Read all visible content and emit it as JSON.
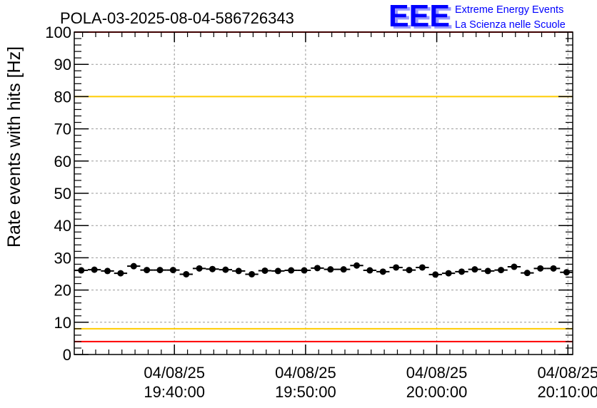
{
  "chart_data": {
    "type": "scatter",
    "title": "POLA-03-2025-08-04-586726343",
    "ylabel": "Rate events with hits [Hz]",
    "xlabel": "",
    "ylim": [
      0,
      100
    ],
    "xlim": [
      "19:32:22",
      "20:10:22"
    ],
    "grid": true,
    "yticks": [
      "0",
      "10",
      "20",
      "30",
      "40",
      "50",
      "60",
      "70",
      "80",
      "90",
      "100"
    ],
    "xticks": [
      {
        "time": "19:40:00",
        "date": "04/08/25",
        "label": "19:40:00"
      },
      {
        "time": "19:50:00",
        "date": "04/08/25",
        "label": "19:50:00"
      },
      {
        "time": "20:00:00",
        "date": "04/08/25",
        "label": "20:00:00"
      },
      {
        "time": "20:10:00",
        "date": "04/08/25",
        "label": "20:10:00"
      }
    ],
    "thresholds": [
      {
        "value": 100,
        "color": "#ff0000"
      },
      {
        "value": 80,
        "color": "#ffcc00"
      },
      {
        "value": 8,
        "color": "#ffcc00"
      },
      {
        "value": 4,
        "color": "#ff0000"
      }
    ],
    "series": [
      {
        "name": "rate",
        "color": "#000000",
        "x_start": "19:32:54",
        "x_step_seconds": 60,
        "bin_width_seconds": 60,
        "values": [
          26.1,
          26.3,
          25.9,
          25.2,
          27.4,
          26.2,
          26.2,
          26.2,
          24.9,
          26.7,
          26.5,
          26.3,
          25.9,
          24.9,
          26.0,
          25.9,
          26.1,
          26.1,
          26.8,
          26.4,
          26.4,
          27.6,
          26.1,
          25.7,
          27.0,
          26.2,
          27.0,
          24.8,
          25.2,
          25.7,
          26.4,
          25.9,
          26.2,
          27.2,
          25.3,
          26.7,
          26.7,
          25.5
        ]
      }
    ]
  },
  "logo": {
    "mark": "EEE",
    "line1": "Extreme Energy Events",
    "line2": "La Scienza nelle Scuole",
    "color": "#0000ff"
  }
}
